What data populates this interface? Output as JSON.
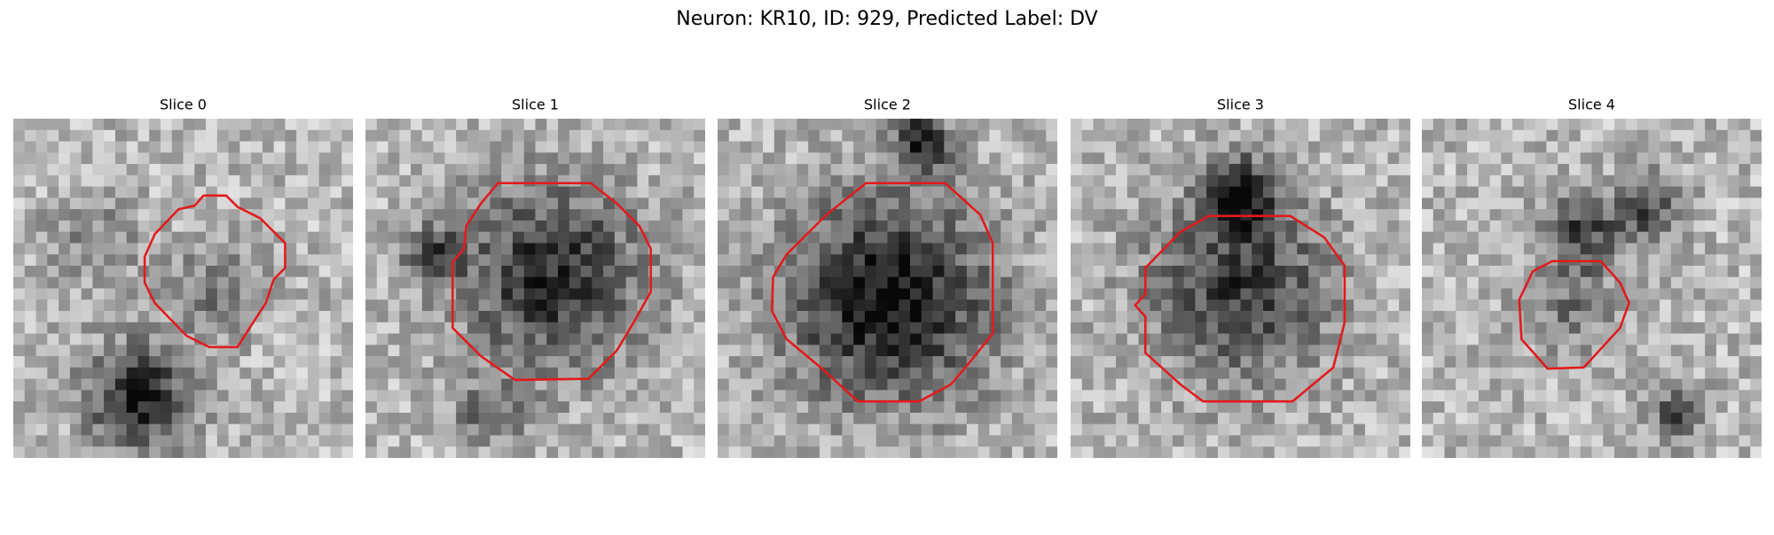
{
  "title": "Neuron: KR10, ID: 929, Predicted Label: DV",
  "panels": [
    {
      "title": "Slice 0"
    },
    {
      "title": "Slice 1"
    },
    {
      "title": "Slice 2"
    },
    {
      "title": "Slice 3"
    },
    {
      "title": "Slice 4"
    }
  ]
}
